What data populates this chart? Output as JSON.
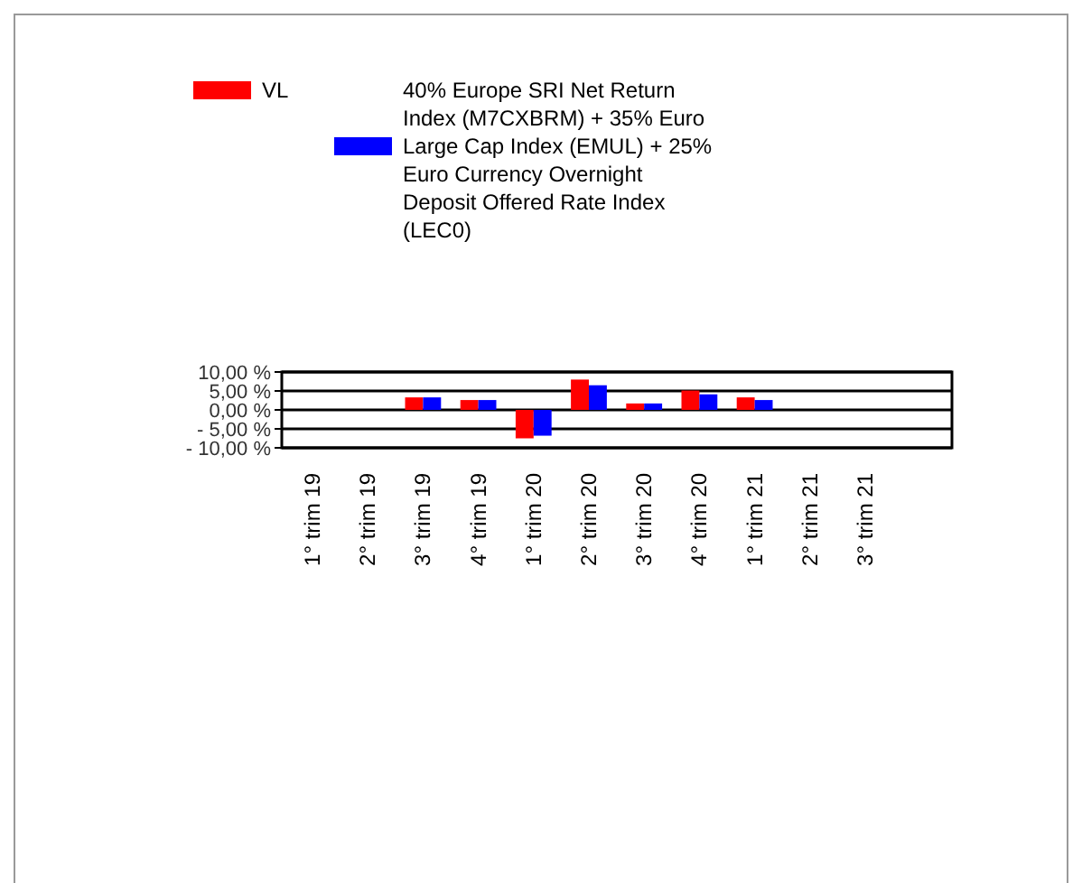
{
  "chart_data": {
    "type": "bar",
    "categories": [
      "1° trim 19",
      "2° trim 19",
      "3° trim 19",
      "4° trim 19",
      "1° trim 20",
      "2° trim 20",
      "3° trim 20",
      "4° trim 20",
      "1° trim 21",
      "2° trim 21",
      "3° trim 21"
    ],
    "series": [
      {
        "name": "VL",
        "color": "#ff0000",
        "values": [
          null,
          null,
          3.3,
          2.6,
          -7.5,
          8.0,
          1.7,
          5.1,
          3.3,
          null,
          null
        ]
      },
      {
        "name": "40% Europe SRI Net Return Index (M7CXBRM) + 35% Euro Large Cap Index (EMUL) + 25% Euro Currency Overnight Deposit Offered Rate Index (LEC0)",
        "color": "#0000ff",
        "values": [
          null,
          null,
          3.3,
          2.6,
          -6.8,
          6.5,
          1.7,
          4.1,
          2.6,
          null,
          null
        ]
      }
    ],
    "ylim": [
      -10,
      10
    ],
    "yticks": [
      {
        "value": 10,
        "label": "10,00 %"
      },
      {
        "value": 5,
        "label": "5,00 %"
      },
      {
        "value": 0,
        "label": "0,00 %"
      },
      {
        "value": -5,
        "label": "- 5,00 %"
      },
      {
        "value": -10,
        "label": "- 10,00 %"
      }
    ],
    "grid": "y",
    "legend": "top"
  }
}
